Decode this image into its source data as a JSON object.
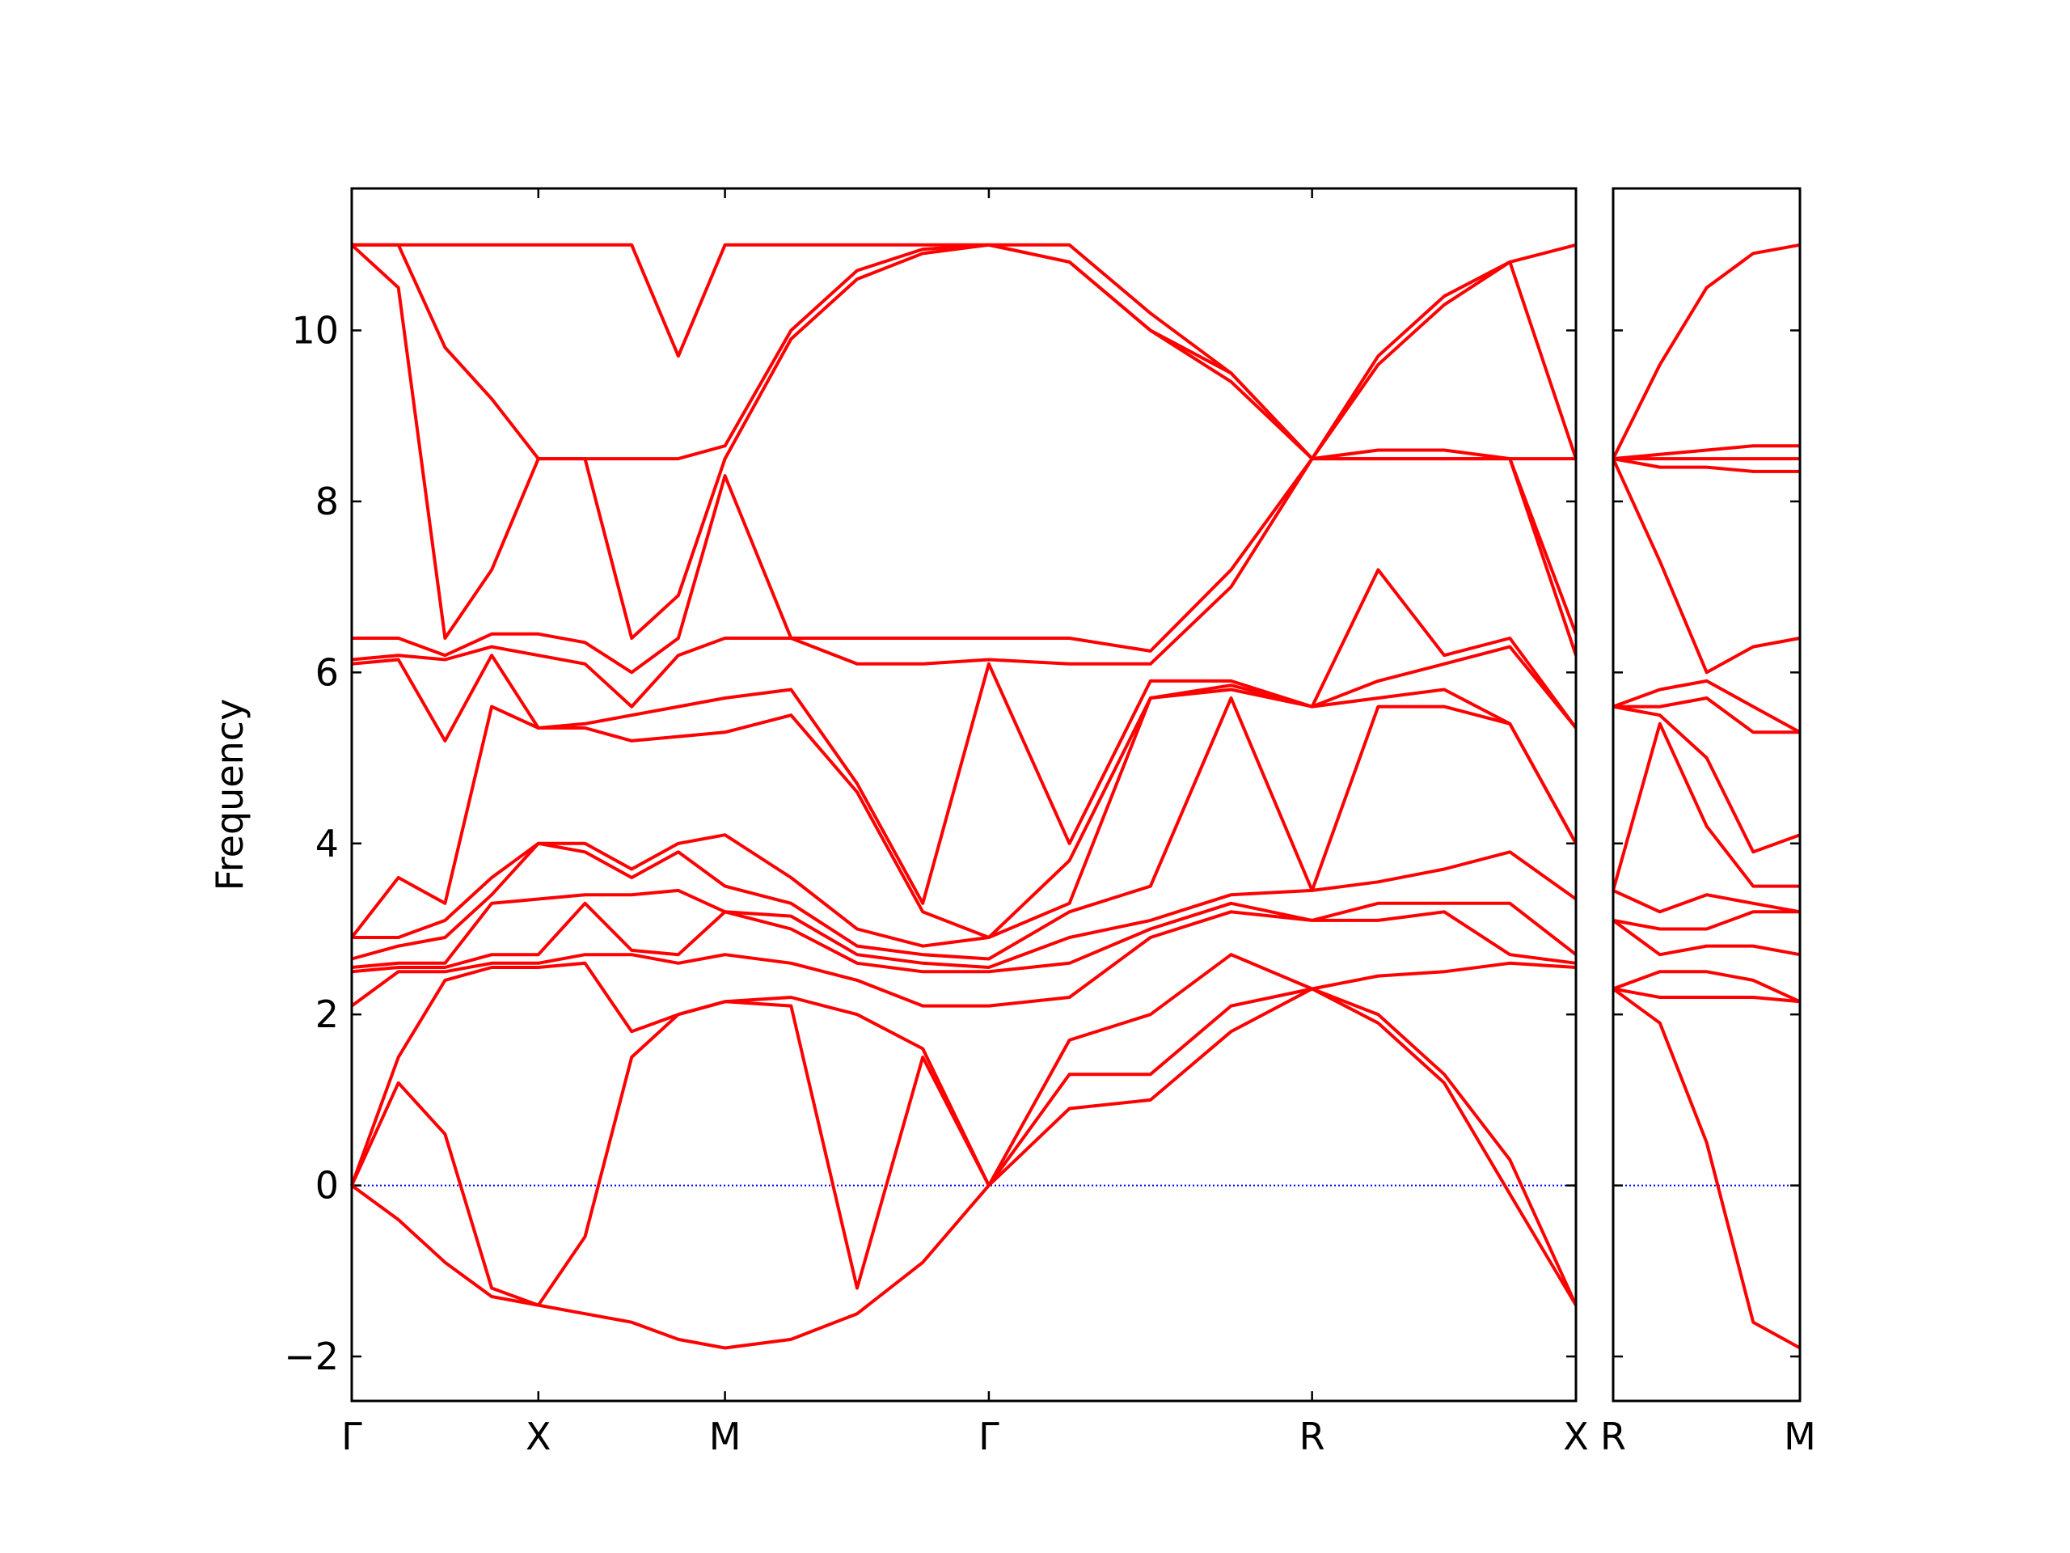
{
  "chart_data": [
    {
      "type": "line",
      "y_label": "Frequency",
      "color": "#ff0000",
      "zero_line_color": "#0000ff",
      "ytick_labels": true,
      "x": [
        0,
        0.125,
        0.25,
        0.375,
        0.5,
        0.625,
        0.75,
        0.875,
        1.0,
        1.177,
        1.354,
        1.53,
        1.707,
        1.923,
        2.14,
        2.356,
        2.573,
        2.75,
        2.927,
        3.103,
        3.28
      ],
      "xlim": [
        0,
        3.28
      ],
      "xticks": [
        {
          "value": 0,
          "label": "Γ"
        },
        {
          "value": 0.5,
          "label": "X"
        },
        {
          "value": 1.0,
          "label": "M"
        },
        {
          "value": 1.707,
          "label": "Γ"
        },
        {
          "value": 2.573,
          "label": "R"
        },
        {
          "value": 3.28,
          "label": "X"
        }
      ],
      "ylim": [
        -2.52,
        11.66
      ],
      "yticks": [
        {
          "value": -2,
          "label": "−2"
        },
        0,
        2,
        4,
        6,
        8,
        10
      ],
      "series": [
        {
          "values": [
            0,
            -0.4,
            -0.9,
            -1.3,
            -1.4,
            -1.5,
            -1.6,
            -1.8,
            -1.9,
            -1.8,
            -1.5,
            -0.9,
            0,
            0.9,
            1.0,
            1.8,
            2.3,
            1.9,
            1.2,
            -0.1,
            -1.4
          ]
        },
        {
          "values": [
            0,
            1.2,
            0.6,
            -1.2,
            -1.4,
            -0.6,
            1.5,
            2.0,
            2.15,
            2.1,
            -1.2,
            1.5,
            0,
            1.3,
            1.3,
            2.1,
            2.3,
            2.0,
            1.3,
            0.3,
            -1.4
          ]
        },
        {
          "values": [
            0,
            1.5,
            2.4,
            2.55,
            2.55,
            2.6,
            1.8,
            2.0,
            2.15,
            2.2,
            2.0,
            1.6,
            0,
            1.7,
            2.0,
            2.7,
            2.3,
            2.45,
            2.5,
            2.6,
            2.55
          ]
        },
        {
          "values": [
            2.1,
            2.5,
            2.5,
            2.6,
            2.6,
            2.7,
            2.7,
            2.6,
            2.7,
            2.6,
            2.4,
            2.1,
            2.1,
            2.2,
            2.9,
            3.2,
            3.1,
            3.1,
            3.2,
            2.7,
            2.6
          ]
        },
        {
          "values": [
            2.5,
            2.55,
            2.55,
            2.7,
            2.7,
            3.3,
            2.75,
            2.7,
            3.2,
            3.0,
            2.6,
            2.5,
            2.5,
            2.6,
            3.0,
            3.3,
            3.1,
            3.3,
            3.3,
            3.3,
            2.7
          ]
        },
        {
          "values": [
            2.55,
            2.6,
            2.6,
            3.3,
            3.35,
            3.4,
            3.4,
            3.45,
            3.2,
            3.15,
            2.7,
            2.6,
            2.55,
            2.9,
            3.1,
            3.4,
            3.45,
            3.55,
            3.7,
            3.9,
            3.35
          ]
        },
        {
          "values": [
            2.65,
            2.8,
            2.9,
            3.4,
            4.0,
            3.9,
            3.6,
            3.9,
            3.5,
            3.3,
            2.8,
            2.7,
            2.65,
            3.2,
            3.5,
            5.7,
            3.45,
            5.6,
            5.6,
            5.4,
            4.0
          ]
        },
        {
          "values": [
            2.9,
            2.9,
            3.1,
            3.6,
            4.0,
            4.0,
            3.7,
            4.0,
            4.1,
            3.6,
            3.0,
            2.8,
            2.9,
            3.3,
            5.7,
            5.8,
            5.6,
            5.7,
            5.8,
            5.4,
            4.0
          ]
        },
        {
          "values": [
            2.9,
            3.6,
            3.3,
            5.6,
            5.35,
            5.35,
            5.2,
            5.25,
            5.3,
            5.5,
            4.6,
            3.2,
            2.9,
            3.8,
            5.7,
            5.85,
            5.6,
            5.9,
            6.1,
            6.3,
            5.35
          ]
        },
        {
          "values": [
            6.1,
            6.15,
            5.2,
            6.2,
            5.35,
            5.4,
            5.5,
            5.6,
            5.7,
            5.8,
            4.7,
            3.3,
            6.1,
            4.0,
            5.9,
            5.9,
            5.6,
            7.2,
            6.2,
            6.4,
            5.35
          ]
        },
        {
          "values": [
            6.15,
            6.2,
            6.15,
            6.3,
            6.2,
            6.1,
            5.6,
            6.2,
            6.4,
            6.4,
            6.1,
            6.1,
            6.15,
            6.1,
            6.1,
            7.0,
            8.5,
            8.5,
            8.5,
            8.5,
            6.2
          ]
        },
        {
          "values": [
            6.4,
            6.4,
            6.2,
            6.45,
            6.45,
            6.35,
            6.0,
            6.4,
            8.3,
            6.4,
            6.4,
            6.4,
            6.4,
            6.4,
            6.25,
            7.2,
            8.5,
            8.5,
            8.5,
            8.5,
            6.45
          ]
        },
        {
          "values": [
            11,
            10.5,
            6.4,
            7.2,
            8.5,
            8.5,
            6.4,
            6.9,
            8.5,
            9.9,
            10.6,
            10.9,
            11,
            10.8,
            10.0,
            9.4,
            8.5,
            8.6,
            8.6,
            8.5,
            8.5
          ]
        },
        {
          "values": [
            11,
            11,
            9.8,
            9.2,
            8.5,
            8.5,
            8.5,
            8.5,
            8.65,
            10.0,
            10.7,
            10.95,
            11,
            10.8,
            10.0,
            9.5,
            8.5,
            9.6,
            10.3,
            10.8,
            8.5
          ]
        },
        {
          "values": [
            11,
            11,
            11,
            11,
            11,
            11,
            11,
            9.7,
            11,
            11,
            11,
            11,
            11,
            11,
            10.2,
            9.5,
            8.5,
            9.7,
            10.4,
            10.8,
            11
          ]
        }
      ]
    },
    {
      "type": "line",
      "color": "#ff0000",
      "zero_line_color": "#0000ff",
      "ytick_labels": false,
      "x": [
        0,
        0.177,
        0.354,
        0.53,
        0.707
      ],
      "xlim": [
        0,
        0.707
      ],
      "xticks": [
        {
          "value": 0,
          "label": "R"
        },
        {
          "value": 0.707,
          "label": "M"
        }
      ],
      "ylim": [
        -2.52,
        11.66
      ],
      "yticks": [
        -2,
        0,
        2,
        4,
        6,
        8,
        10
      ],
      "series": [
        {
          "values": [
            2.3,
            1.9,
            0.5,
            -1.6,
            -1.9
          ]
        },
        {
          "values": [
            2.3,
            2.2,
            2.2,
            2.2,
            2.15
          ]
        },
        {
          "values": [
            2.3,
            2.5,
            2.5,
            2.4,
            2.15
          ]
        },
        {
          "values": [
            3.1,
            2.7,
            2.8,
            2.8,
            2.7
          ]
        },
        {
          "values": [
            3.1,
            3.0,
            3.0,
            3.2,
            3.2
          ]
        },
        {
          "values": [
            3.45,
            3.2,
            3.4,
            3.3,
            3.2
          ]
        },
        {
          "values": [
            3.45,
            5.4,
            4.2,
            3.5,
            3.5
          ]
        },
        {
          "values": [
            5.6,
            5.5,
            5.0,
            3.9,
            4.1
          ]
        },
        {
          "values": [
            5.6,
            5.6,
            5.7,
            5.3,
            5.3
          ]
        },
        {
          "values": [
            5.6,
            5.8,
            5.9,
            5.6,
            5.3
          ]
        },
        {
          "values": [
            8.5,
            7.3,
            6.0,
            6.3,
            6.4
          ]
        },
        {
          "values": [
            8.5,
            8.4,
            8.4,
            8.35,
            8.35
          ]
        },
        {
          "values": [
            8.5,
            8.5,
            8.5,
            8.5,
            8.5
          ]
        },
        {
          "values": [
            8.5,
            8.55,
            8.6,
            8.65,
            8.65
          ]
        },
        {
          "values": [
            8.5,
            9.6,
            10.5,
            10.9,
            11
          ]
        }
      ]
    }
  ]
}
